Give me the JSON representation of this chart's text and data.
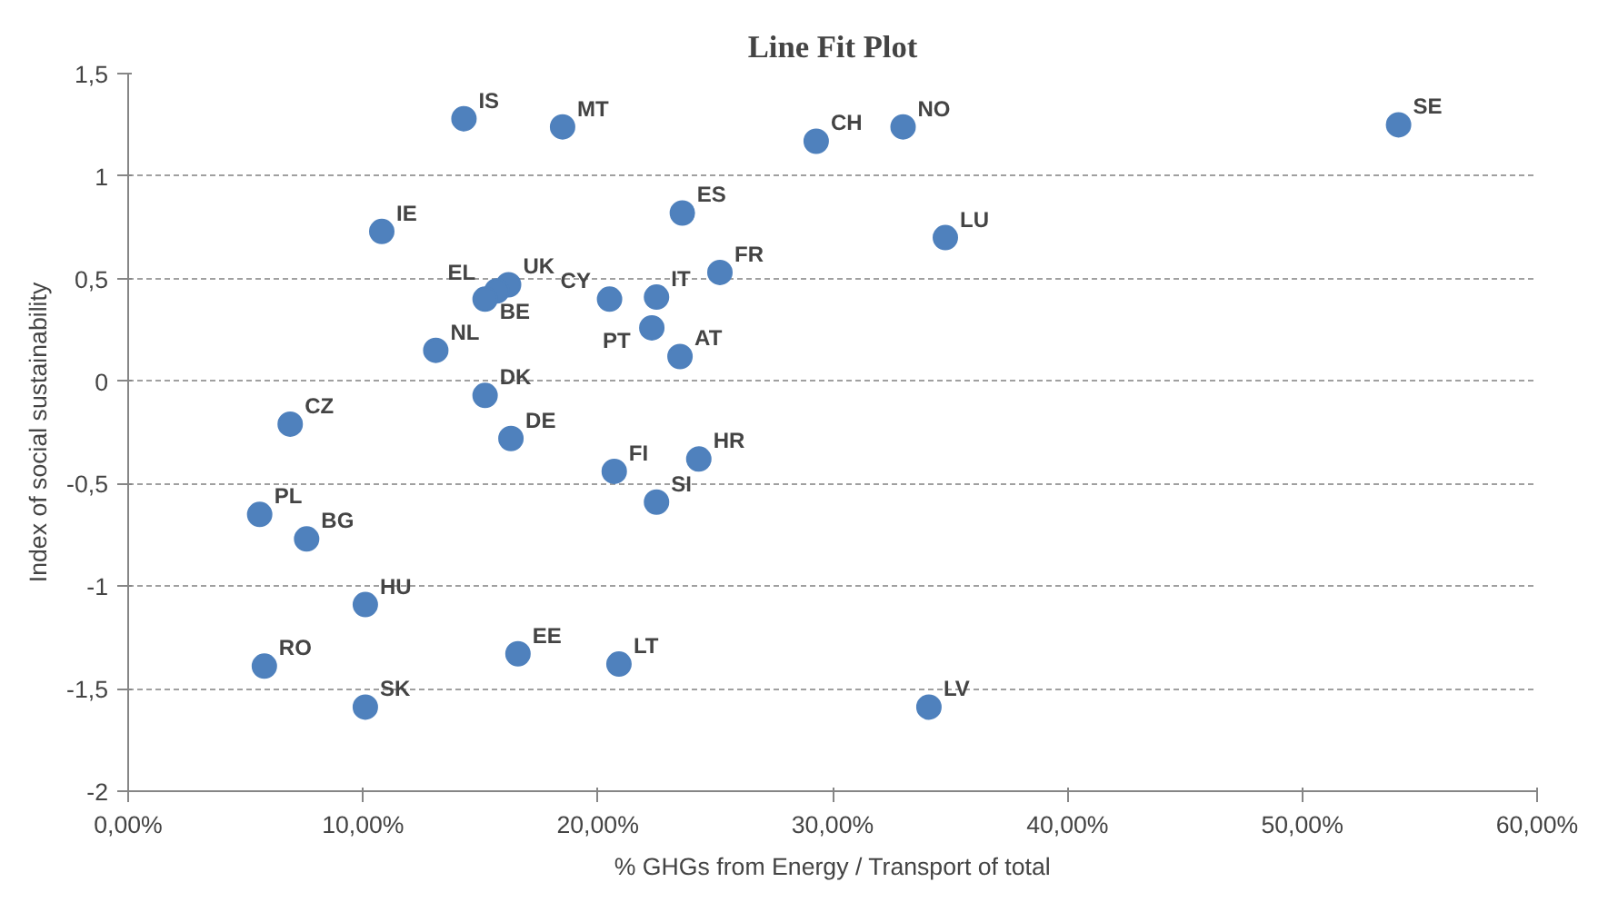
{
  "chart_data": {
    "type": "scatter",
    "title": "Line Fit Plot",
    "xlabel": "% GHGs from Energy / Transport of total",
    "ylabel": "Index of social sustainability",
    "x": [
      14.3,
      18.5,
      29.3,
      33.0,
      54.1,
      10.8,
      23.6,
      34.8,
      16.2,
      15.7,
      15.2,
      20.5,
      22.5,
      25.2,
      22.3,
      23.5,
      13.1,
      15.2,
      6.9,
      16.3,
      20.7,
      24.3,
      22.5,
      5.6,
      7.6,
      10.1,
      5.8,
      16.6,
      20.9,
      10.1,
      34.1
    ],
    "series": [
      {
        "color": "#4f81bd",
        "values": [
          1.28,
          1.24,
          1.17,
          1.24,
          1.25,
          0.73,
          0.82,
          0.7,
          0.47,
          0.44,
          0.4,
          0.4,
          0.41,
          0.53,
          0.26,
          0.12,
          0.15,
          -0.07,
          -0.21,
          -0.28,
          -0.44,
          -0.38,
          -0.59,
          -0.65,
          -0.77,
          -1.09,
          -1.39,
          -1.33,
          -1.38,
          -1.59,
          -1.59
        ]
      }
    ],
    "annotations": [
      {
        "text": "IS",
        "x": 14.3,
        "y": 1.28
      },
      {
        "text": "MT",
        "x": 18.5,
        "y": 1.24
      },
      {
        "text": "CH",
        "x": 29.3,
        "y": 1.17
      },
      {
        "text": "NO",
        "x": 33.0,
        "y": 1.24
      },
      {
        "text": "SE",
        "x": 54.1,
        "y": 1.25
      },
      {
        "text": "IE",
        "x": 10.8,
        "y": 0.73
      },
      {
        "text": "ES",
        "x": 23.6,
        "y": 0.82
      },
      {
        "text": "LU",
        "x": 34.8,
        "y": 0.7
      },
      {
        "text": "UK",
        "x": 16.2,
        "y": 0.47
      },
      {
        "text": "EL",
        "x": 15.7,
        "y": 0.44
      },
      {
        "text": "BE",
        "x": 15.2,
        "y": 0.4
      },
      {
        "text": "CY",
        "x": 20.5,
        "y": 0.4
      },
      {
        "text": "IT",
        "x": 22.5,
        "y": 0.41
      },
      {
        "text": "FR",
        "x": 25.2,
        "y": 0.53
      },
      {
        "text": "PT",
        "x": 22.3,
        "y": 0.26
      },
      {
        "text": "AT",
        "x": 23.5,
        "y": 0.12
      },
      {
        "text": "NL",
        "x": 13.1,
        "y": 0.15
      },
      {
        "text": "DK",
        "x": 15.2,
        "y": -0.07
      },
      {
        "text": "CZ",
        "x": 6.9,
        "y": -0.21
      },
      {
        "text": "DE",
        "x": 16.3,
        "y": -0.28
      },
      {
        "text": "FI",
        "x": 20.7,
        "y": -0.44
      },
      {
        "text": "HR",
        "x": 24.3,
        "y": -0.38
      },
      {
        "text": "SI",
        "x": 22.5,
        "y": -0.59
      },
      {
        "text": "PL",
        "x": 5.6,
        "y": -0.65
      },
      {
        "text": "BG",
        "x": 7.6,
        "y": -0.77
      },
      {
        "text": "HU",
        "x": 10.1,
        "y": -1.09
      },
      {
        "text": "RO",
        "x": 5.8,
        "y": -1.39
      },
      {
        "text": "EE",
        "x": 16.6,
        "y": -1.33
      },
      {
        "text": "LT",
        "x": 20.9,
        "y": -1.38
      },
      {
        "text": "SK",
        "x": 10.1,
        "y": -1.59
      },
      {
        "text": "LV",
        "x": 34.1,
        "y": -1.59
      }
    ],
    "xlim": [
      0,
      60
    ],
    "xticks": [
      {
        "value": 0,
        "label": "0,00%"
      },
      {
        "value": 10,
        "label": "10,00%"
      },
      {
        "value": 20,
        "label": "20,00%"
      },
      {
        "value": 30,
        "label": "30,00%"
      },
      {
        "value": 40,
        "label": "40,00%"
      },
      {
        "value": 50,
        "label": "50,00%"
      },
      {
        "value": 60,
        "label": "60,00%"
      }
    ],
    "ylim": [
      -2,
      1.5
    ],
    "yticks": [
      -2,
      {
        "value": -1.5,
        "label": "-1,5"
      },
      -1,
      {
        "value": -0.5,
        "label": "-0,5"
      },
      0,
      {
        "value": 0.5,
        "label": "0,5"
      },
      1,
      {
        "value": 1.5,
        "label": "1,5"
      }
    ],
    "grid": "y",
    "marker": "circle"
  }
}
